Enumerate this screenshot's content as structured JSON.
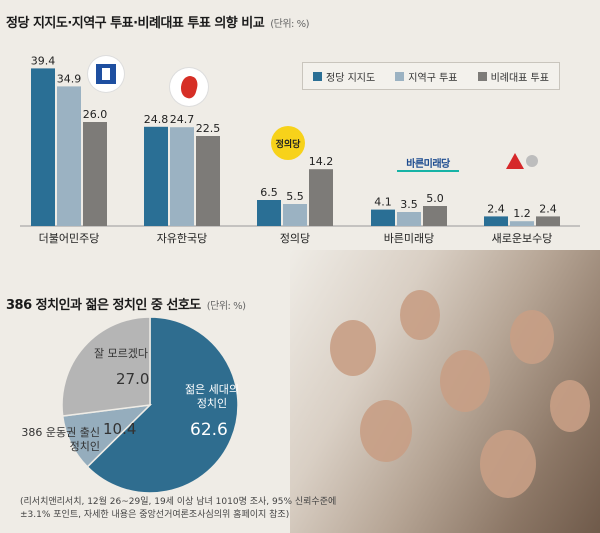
{
  "title": "정당 지지도·지역구 투표·비례대표 투표 의향 비교",
  "unit": "(단위: %)",
  "colors": {
    "party_support": "#2a6f95",
    "district_vote": "#9bb2c2",
    "proportional_vote": "#7d7b78",
    "pie_young": "#2f6d8f",
    "pie_386": "#95adbd",
    "pie_unknown": "#b5b5b5"
  },
  "chart_data": [
    {
      "type": "bar",
      "title": "정당 지지도·지역구 투표·비례대표 투표 의향 비교",
      "categories": [
        "더불어민주당",
        "자유한국당",
        "정의당",
        "바른미래당",
        "새로운보수당"
      ],
      "series": [
        {
          "name": "정당 지지도",
          "values": [
            39.4,
            24.8,
            6.5,
            4.1,
            2.4
          ]
        },
        {
          "name": "지역구 투표",
          "values": [
            34.9,
            24.7,
            5.5,
            3.5,
            1.2
          ]
        },
        {
          "name": "비례대표 투표",
          "values": [
            26.0,
            22.5,
            14.2,
            5.0,
            2.4
          ]
        }
      ],
      "value_labels": [
        [
          "39.4",
          "34.9",
          "26.0"
        ],
        [
          "24.8",
          "24.7",
          "22.5"
        ],
        [
          "6.5",
          "5.5",
          "14.2"
        ],
        [
          "4.1",
          "3.5",
          "5.0"
        ],
        [
          "2.4",
          "1.2",
          "2.4"
        ]
      ],
      "legend": "top-right",
      "grid": false
    },
    {
      "type": "pie",
      "title": "386 정치인과 젊은 정치인 중 선호도",
      "unit": "(단위: %)",
      "slices": [
        {
          "label": "젊은 세대의 정치인",
          "value": 62.6,
          "value_label": "62.6"
        },
        {
          "label": "386 운동권 출신 정치인",
          "value": 10.4,
          "value_label": "10.4"
        },
        {
          "label": "잘 모르겠다",
          "value": 27.0,
          "value_label": "27.0"
        }
      ]
    }
  ],
  "logos": {
    "justice_party": "정의당",
    "bareun_party": "바른미래당"
  },
  "pie_labels": {
    "young_line1": "젊은 세대의",
    "young_line2": "정치인",
    "p386_line1": "386 운동권 출신",
    "p386_line2": "정치인",
    "unknown": "잘 모르겠다"
  },
  "source_line1": "(리서치앤리서치, 12월 26~29일, 19세 이상 남녀 1010명 조사, 95% 신뢰수준에",
  "source_line2": "±3.1% 포인트,  자세한 내용은 중앙선거여론조사심의위 홈페이지 참조)"
}
